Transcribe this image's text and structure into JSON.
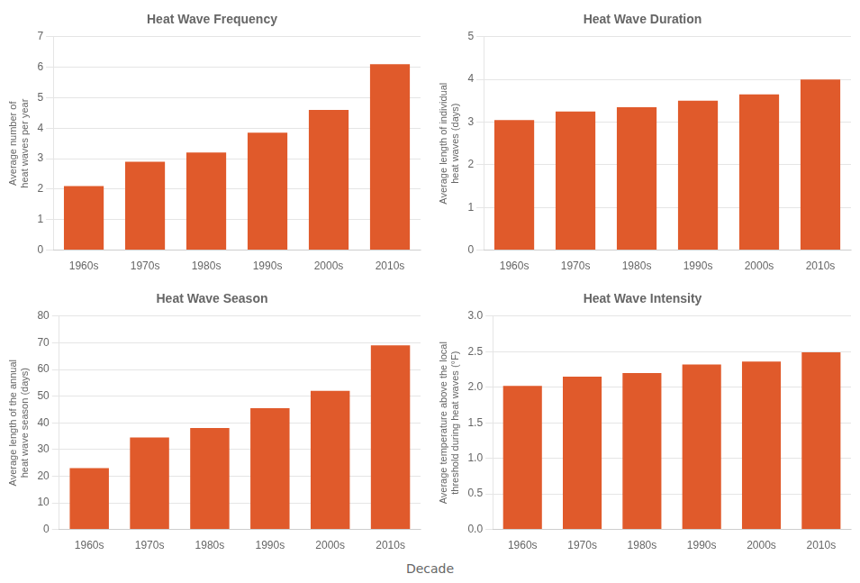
{
  "chart_data": [
    {
      "type": "bar",
      "title": "Heat Wave Frequency",
      "categories": [
        "1960s",
        "1970s",
        "1980s",
        "1990s",
        "2000s",
        "2010s"
      ],
      "values": [
        2.1,
        2.9,
        3.2,
        3.85,
        4.6,
        6.1
      ],
      "ylabel": "Average number of\nheat waves per year",
      "color": "#e05a2b",
      "ylim": [
        0,
        7
      ],
      "yticks": [
        0,
        1,
        2,
        3,
        4,
        5,
        6,
        7
      ],
      "grid": true
    },
    {
      "type": "bar",
      "title": "Heat Wave Duration",
      "categories": [
        "1960s",
        "1970s",
        "1980s",
        "1990s",
        "2000s",
        "2010s"
      ],
      "values": [
        3.05,
        3.25,
        3.35,
        3.5,
        3.65,
        4.0
      ],
      "ylabel": "Average length of individual\nheat waves (days)",
      "color": "#e05a2b",
      "ylim": [
        0,
        5
      ],
      "yticks": [
        0,
        1,
        2,
        3,
        4,
        5
      ],
      "grid": true
    },
    {
      "type": "bar",
      "title": "Heat Wave Season",
      "categories": [
        "1960s",
        "1970s",
        "1980s",
        "1990s",
        "2000s",
        "2010s"
      ],
      "values": [
        23,
        34.5,
        38,
        45.5,
        52,
        69
      ],
      "ylabel": "Average length of the annual\nheat wave season (days)",
      "color": "#e05a2b",
      "ylim": [
        0,
        80
      ],
      "yticks": [
        0,
        10,
        20,
        30,
        40,
        50,
        60,
        70,
        80
      ],
      "grid": true
    },
    {
      "type": "bar",
      "title": "Heat Wave Intensity",
      "categories": [
        "1960s",
        "1970s",
        "1980s",
        "1990s",
        "2000s",
        "2010s"
      ],
      "values": [
        2.02,
        2.15,
        2.2,
        2.32,
        2.36,
        2.49
      ],
      "ylabel": "Average temperature above the local\nthreshold during heat waves (°F)",
      "color": "#e05a2b",
      "ylim": [
        0.0,
        3.0
      ],
      "yticks": [
        {
          "value": 0,
          "label": "0.0"
        },
        {
          "value": 0.5,
          "label": "0.5"
        },
        {
          "value": 1,
          "label": "1.0"
        },
        {
          "value": 1.5,
          "label": "1.5"
        },
        {
          "value": 2,
          "label": "2.0"
        },
        {
          "value": 2.5,
          "label": "2.5"
        },
        {
          "value": 3,
          "label": "3.0"
        }
      ],
      "grid": true
    }
  ],
  "xlabel": "Decade"
}
